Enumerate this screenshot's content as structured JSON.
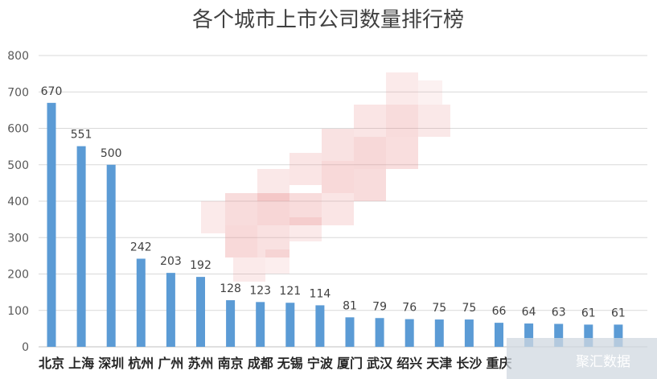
{
  "chart_data": {
    "type": "bar",
    "title": "各个城市上市公司数量排行榜",
    "categories": [
      "北京",
      "上海",
      "深圳",
      "杭州",
      "广州",
      "苏州",
      "南京",
      "成都",
      "无锡",
      "宁波",
      "厦门",
      "武汉",
      "绍兴",
      "天津",
      "长沙",
      "重庆",
      "",
      "",
      "",
      ""
    ],
    "values": [
      670,
      551,
      500,
      242,
      203,
      192,
      128,
      123,
      121,
      114,
      81,
      79,
      76,
      75,
      75,
      66,
      64,
      63,
      61,
      61
    ],
    "ylim": [
      0,
      800
    ],
    "yticks": [
      0,
      100,
      200,
      300,
      400,
      500,
      600,
      700,
      800
    ],
    "grid": true,
    "bar_color": "#5b9bd5",
    "legend": "none"
  },
  "watermark": {
    "text": "聚汇数据"
  }
}
